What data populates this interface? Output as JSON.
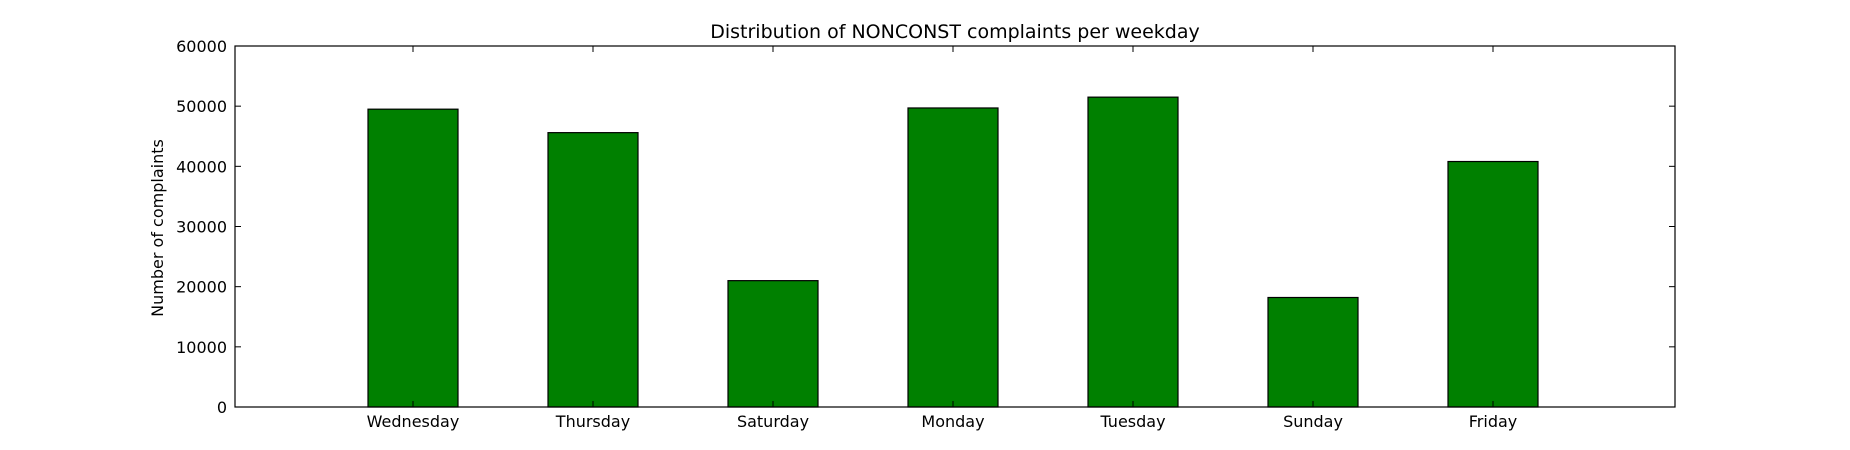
{
  "chart_data": {
    "type": "bar",
    "title": "Distribution of  NONCONST complaints per weekday",
    "xlabel": "",
    "ylabel": "Number of complaints",
    "categories": [
      "Wednesday",
      "Thursday",
      "Saturday",
      "Monday",
      "Tuesday",
      "Sunday",
      "Friday"
    ],
    "values": [
      49500,
      45600,
      21000,
      49700,
      51500,
      18200,
      40800
    ],
    "ylim": [
      0,
      60000
    ],
    "yticks": [
      0,
      10000,
      20000,
      30000,
      40000,
      50000,
      60000
    ],
    "bar_color": "#008000",
    "grid": false,
    "legend": "none"
  }
}
